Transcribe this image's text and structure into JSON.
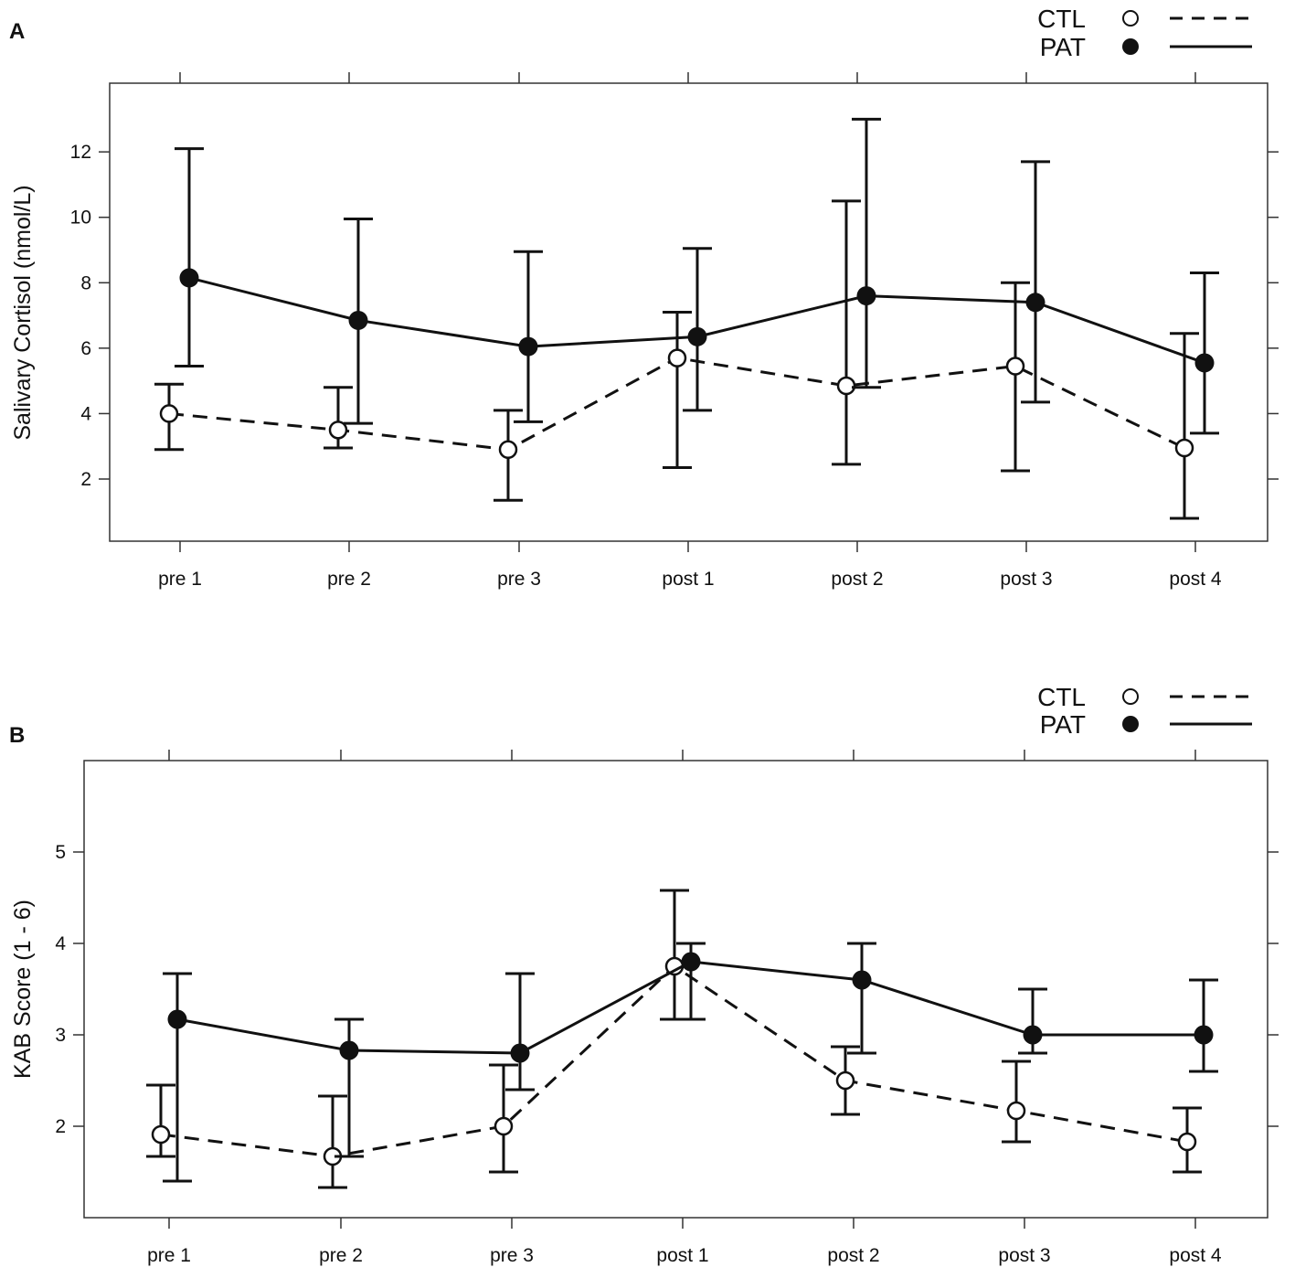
{
  "chart_data": [
    {
      "panel": "A",
      "type": "line",
      "title": "",
      "xlabel": "",
      "ylabel": "Salivary Cortisol (nmol/L)",
      "categories": [
        "pre 1",
        "pre 2",
        "pre 3",
        "post 1",
        "post 2",
        "post 3",
        "post 4"
      ],
      "yticks": [
        "2",
        "4",
        "6",
        "8",
        "10",
        "12"
      ],
      "ylim": [
        0.1,
        14.1
      ],
      "grid": false,
      "legend_position": "top-right",
      "series": [
        {
          "name": "CTL",
          "marker": "open-circle",
          "line": "dashed",
          "values": [
            4.0,
            3.5,
            2.9,
            5.7,
            4.85,
            5.45,
            2.95
          ],
          "err_low": [
            2.9,
            2.95,
            1.35,
            2.35,
            2.45,
            2.25,
            0.8
          ],
          "err_high": [
            4.9,
            4.8,
            4.1,
            7.1,
            10.5,
            8.0,
            6.45
          ]
        },
        {
          "name": "PAT",
          "marker": "filled-circle",
          "line": "solid",
          "values": [
            8.15,
            6.85,
            6.05,
            6.35,
            7.6,
            7.4,
            5.55
          ],
          "err_low": [
            5.45,
            3.7,
            3.75,
            4.1,
            4.8,
            4.35,
            3.4
          ],
          "err_high": [
            12.1,
            9.95,
            8.95,
            9.05,
            13.0,
            11.7,
            8.3
          ]
        }
      ]
    },
    {
      "panel": "B",
      "type": "line",
      "title": "",
      "xlabel": "",
      "ylabel": "KAB Score (1 - 6)",
      "categories": [
        "pre 1",
        "pre 2",
        "pre 3",
        "post 1",
        "post 2",
        "post 3",
        "post 4"
      ],
      "yticks": [
        "2",
        "3",
        "4",
        "5"
      ],
      "ylim": [
        1.0,
        6.0
      ],
      "grid": false,
      "legend_position": "top-right",
      "series": [
        {
          "name": "CTL",
          "marker": "open-circle",
          "line": "dashed",
          "values": [
            1.91,
            1.67,
            2.0,
            3.75,
            2.5,
            2.17,
            1.83
          ],
          "err_low": [
            1.67,
            1.33,
            1.5,
            3.17,
            2.13,
            1.83,
            1.5
          ],
          "err_high": [
            2.45,
            2.33,
            2.67,
            4.58,
            2.87,
            2.71,
            2.2
          ]
        },
        {
          "name": "PAT",
          "marker": "filled-circle",
          "line": "solid",
          "values": [
            3.17,
            2.83,
            2.8,
            3.8,
            3.6,
            3.0,
            3.0
          ],
          "err_low": [
            1.4,
            1.67,
            2.4,
            3.17,
            2.8,
            2.8,
            2.6
          ],
          "err_high": [
            3.67,
            3.17,
            3.67,
            4.0,
            4.0,
            3.5,
            3.6
          ]
        }
      ]
    }
  ]
}
